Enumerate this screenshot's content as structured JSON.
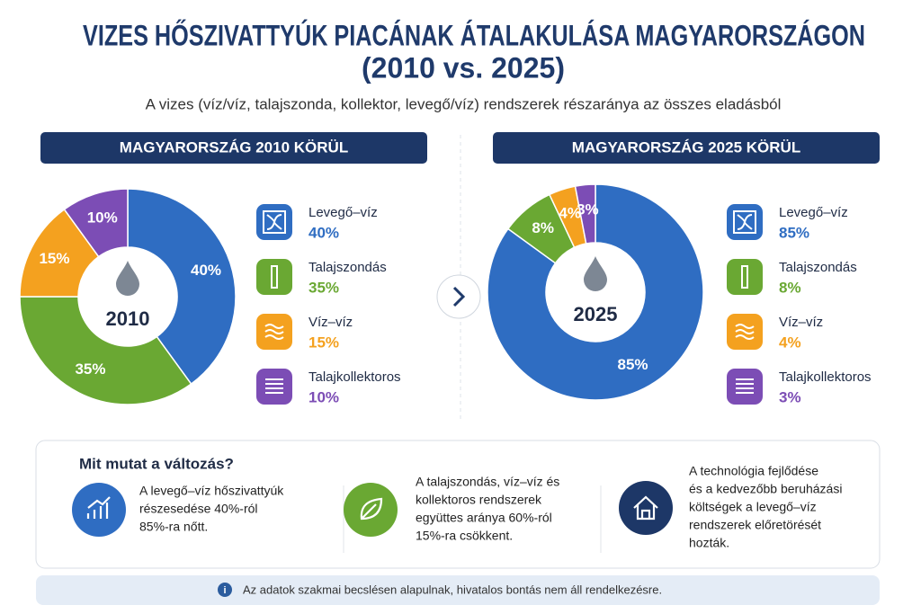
{
  "header": {
    "title": "VIZES HŐSZIVATTYÚK PIACÁNAK ÁTALAKULÁSA MAGYARORSZÁGON",
    "title_line2": "(2010 vs. 2025)",
    "subtitle": "A vizes (víz/víz, talajszonda, kollektor, levegő/víz) rendszerek részaránya az összes eladásból"
  },
  "chart_data": [
    {
      "type": "donut",
      "title": "MAGYARORSZÁG 2010 KÖRÜL",
      "center_label": "2010",
      "categories": [
        "Levegő–víz",
        "Talajszondás",
        "Víz–víz",
        "Talajkollektoros"
      ],
      "values": [
        40,
        35,
        15,
        10
      ],
      "value_labels": [
        "40%",
        "35%",
        "15%",
        "10%"
      ],
      "colors": [
        "#2f6dc2",
        "#6aa833",
        "#f4a11f",
        "#7c4db5"
      ]
    },
    {
      "type": "donut",
      "title": "MAGYARORSZÁG 2025 KÖRÜL",
      "center_label": "2025",
      "categories": [
        "Levegő–víz",
        "Talajszondás",
        "Víz–víz",
        "Talajkollektoros"
      ],
      "values": [
        85,
        8,
        4,
        3
      ],
      "value_labels": [
        "85%",
        "8%",
        "4%",
        "3%"
      ],
      "colors": [
        "#2f6dc2",
        "#6aa833",
        "#f4a11f",
        "#7c4db5"
      ]
    }
  ],
  "insights": {
    "title": "Mit mutat a változás?",
    "items": [
      {
        "lines": [
          "A levegő–víz hőszivattyúk",
          "részesedése 40%-ról",
          "85%-ra nőtt."
        ]
      },
      {
        "lines": [
          "A talajszondás, víz–víz és",
          "kollektoros rendszerek",
          "együttes aránya 60%-ról",
          "15%-ra csökkent."
        ]
      },
      {
        "lines": [
          "A technológia fejlődése",
          "és a kedvezőbb beruházási",
          "költségek a levegő–víz",
          "rendszerek előretörését",
          "hozták."
        ]
      }
    ]
  },
  "footnote": "Az adatok szakmai becslésen alapulnak, hivatalos bontás nem áll rendelkezésre."
}
